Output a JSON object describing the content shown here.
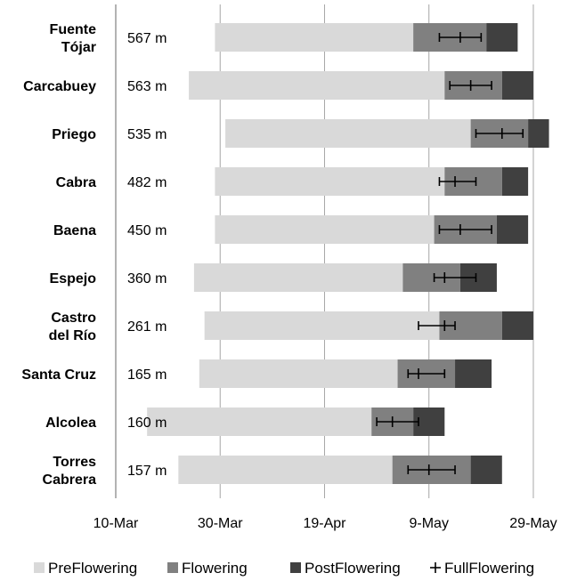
{
  "chart_data": {
    "type": "bar",
    "orientation": "horizontal-stacked-timeline",
    "x_axis": {
      "ticks": [
        "10-Mar",
        "30-Mar",
        "19-Apr",
        "9-May",
        "29-May"
      ],
      "tick_dates": [
        "2000-03-10",
        "2000-03-30",
        "2000-04-19",
        "2000-05-09",
        "2000-05-29"
      ],
      "range": [
        "2000-03-10",
        "2000-06-05"
      ],
      "grid": true
    },
    "legend": {
      "position": "bottom",
      "items": [
        {
          "key": "PreFlowering",
          "label": "PreFlowering",
          "symbol": "square",
          "color": "#d9d9d9"
        },
        {
          "key": "Flowering",
          "label": "Flowering",
          "symbol": "square",
          "color": "#808080"
        },
        {
          "key": "PostFlowering",
          "label": "PostFlowering",
          "symbol": "square",
          "color": "#404040"
        },
        {
          "key": "FullFlowering",
          "label": "FullFlowering",
          "symbol": "+",
          "color": "#000000"
        }
      ]
    },
    "sites": [
      {
        "name_lines": [
          "Fuente",
          "Tójar"
        ],
        "altitude": "567 m",
        "pre": [
          "2000-03-29",
          "2000-05-06"
        ],
        "flowering": [
          "2000-05-06",
          "2000-05-20"
        ],
        "post": [
          "2000-05-20",
          "2000-05-26"
        ],
        "full": {
          "date": "2000-05-15",
          "err": [
            "2000-05-11",
            "2000-05-19"
          ]
        }
      },
      {
        "name_lines": [
          "Carcabuey"
        ],
        "altitude": "563 m",
        "pre": [
          "2000-03-24",
          "2000-05-12"
        ],
        "flowering": [
          "2000-05-12",
          "2000-05-23"
        ],
        "post": [
          "2000-05-23",
          "2000-05-29"
        ],
        "full": {
          "date": "2000-05-17",
          "err": [
            "2000-05-13",
            "2000-05-21"
          ]
        }
      },
      {
        "name_lines": [
          "Priego"
        ],
        "altitude": "535 m",
        "pre": [
          "2000-03-31",
          "2000-05-17"
        ],
        "flowering": [
          "2000-05-17",
          "2000-05-28"
        ],
        "post": [
          "2000-05-28",
          "2000-06-01"
        ],
        "full": {
          "date": "2000-05-23",
          "err": [
            "2000-05-18",
            "2000-05-27"
          ]
        }
      },
      {
        "name_lines": [
          "Cabra"
        ],
        "altitude": "482 m",
        "pre": [
          "2000-03-29",
          "2000-05-12"
        ],
        "flowering": [
          "2000-05-12",
          "2000-05-23"
        ],
        "post": [
          "2000-05-23",
          "2000-05-28"
        ],
        "full": {
          "date": "2000-05-14",
          "err": [
            "2000-05-11",
            "2000-05-18"
          ]
        }
      },
      {
        "name_lines": [
          "Baena"
        ],
        "altitude": "450 m",
        "pre": [
          "2000-03-29",
          "2000-05-10"
        ],
        "flowering": [
          "2000-05-10",
          "2000-05-22"
        ],
        "post": [
          "2000-05-22",
          "2000-05-28"
        ],
        "full": {
          "date": "2000-05-15",
          "err": [
            "2000-05-11",
            "2000-05-21"
          ]
        }
      },
      {
        "name_lines": [
          "Espejo"
        ],
        "altitude": "360 m",
        "pre": [
          "2000-03-25",
          "2000-05-04"
        ],
        "flowering": [
          "2000-05-04",
          "2000-05-15"
        ],
        "post": [
          "2000-05-15",
          "2000-05-22"
        ],
        "full": {
          "date": "2000-05-12",
          "err": [
            "2000-05-10",
            "2000-05-18"
          ]
        }
      },
      {
        "name_lines": [
          "Castro",
          "del Río"
        ],
        "altitude": "261 m",
        "pre": [
          "2000-03-27",
          "2000-05-11"
        ],
        "flowering": [
          "2000-05-11",
          "2000-05-23"
        ],
        "post": [
          "2000-05-23",
          "2000-05-29"
        ],
        "full": {
          "date": "2000-05-12",
          "err": [
            "2000-05-07",
            "2000-05-14"
          ]
        }
      },
      {
        "name_lines": [
          "Santa Cruz"
        ],
        "altitude": "165 m",
        "pre": [
          "2000-03-26",
          "2000-05-03"
        ],
        "flowering": [
          "2000-05-03",
          "2000-05-14"
        ],
        "post": [
          "2000-05-14",
          "2000-05-21"
        ],
        "full": {
          "date": "2000-05-07",
          "err": [
            "2000-05-05",
            "2000-05-12"
          ]
        }
      },
      {
        "name_lines": [
          "Alcolea"
        ],
        "altitude": "160 m",
        "pre": [
          "2000-03-16",
          "2000-04-28"
        ],
        "flowering": [
          "2000-04-28",
          "2000-05-06"
        ],
        "post": [
          "2000-05-06",
          "2000-05-12"
        ],
        "full": {
          "date": "2000-05-02",
          "err": [
            "2000-04-29",
            "2000-05-07"
          ]
        }
      },
      {
        "name_lines": [
          "Torres",
          "Cabrera"
        ],
        "altitude": "157 m",
        "pre": [
          "2000-03-22",
          "2000-05-02"
        ],
        "flowering": [
          "2000-05-02",
          "2000-05-17"
        ],
        "post": [
          "2000-05-17",
          "2000-05-23"
        ],
        "full": {
          "date": "2000-05-09",
          "err": [
            "2000-05-05",
            "2000-05-14"
          ]
        }
      }
    ]
  }
}
